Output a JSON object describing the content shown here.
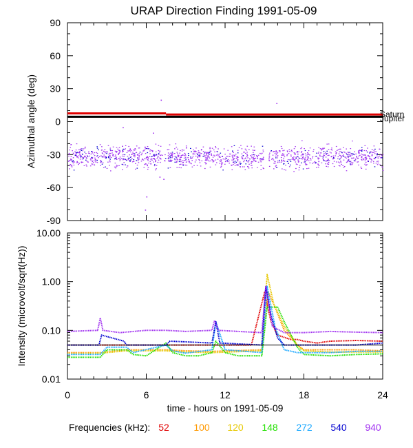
{
  "title": "URAP Direction Finding  1991-05-09",
  "xlabel": "time - hours on 1991-05-09",
  "legend_prefix": "Frequencies (kHz):",
  "colors": {
    "52": "#e00000",
    "100": "#ff9900",
    "120": "#e6c800",
    "148": "#22e000",
    "272": "#1aa8ff",
    "540": "#0000d0",
    "940": "#a030f0",
    "ref": "#000000"
  },
  "chart_data": [
    {
      "type": "scatter",
      "name": "azimuth-panel",
      "ylabel": "Azimuthal angle (deg)",
      "xlim": [
        0,
        24
      ],
      "ylim": [
        -90,
        90
      ],
      "x_ticks": [
        0,
        6,
        12,
        18,
        24
      ],
      "y_ticks": [
        "90",
        "60",
        "30",
        "0",
        "-30",
        "-60",
        "-90"
      ],
      "reference_lines": [
        {
          "label": "Saturn",
          "color": "red",
          "segments": [
            [
              0,
              7.5,
              7.5
            ],
            [
              7.5,
              24,
              6.5
            ]
          ]
        },
        {
          "label": "Jupiter",
          "color": "black",
          "segments": [
            [
              0,
              24,
              4.5
            ]
          ]
        }
      ],
      "scatter_band": {
        "center": -32,
        "spread": 9,
        "x": [
          0,
          24
        ]
      },
      "outliers": [
        [
          6,
          -68
        ],
        [
          5.9,
          -80
        ],
        [
          7,
          -50
        ],
        [
          7.3,
          -52
        ],
        [
          7.1,
          20
        ],
        [
          4.2,
          -5
        ],
        [
          15.9,
          17
        ],
        [
          6.5,
          -10
        ]
      ]
    },
    {
      "type": "line",
      "name": "intensity-panel",
      "ylabel": "Intensity (microvolt/sqrt(Hz))",
      "xlim": [
        0,
        24
      ],
      "ylim": [
        0.01,
        10
      ],
      "yscale": "log",
      "x_ticks": [
        "0",
        "6",
        "12",
        "18",
        "24"
      ],
      "y_ticks": [
        "10.00",
        "1.00",
        "0.10",
        "0.01"
      ],
      "series": [
        {
          "name": "52",
          "x": [
            0,
            14,
            15,
            15.5,
            16,
            17,
            17.5,
            18,
            19,
            20,
            22,
            24
          ],
          "values": [
            0.05,
            0.05,
            0.6,
            0.15,
            0.08,
            0.065,
            0.065,
            0.06,
            0.055,
            0.06,
            0.062,
            0.06
          ]
        },
        {
          "name": "100",
          "x": [
            0,
            2.5,
            4.5,
            7.5,
            9,
            11,
            14.8,
            15.3,
            15.8,
            16.5,
            17.5,
            18,
            20,
            22,
            24
          ],
          "values": [
            0.035,
            0.035,
            0.04,
            0.04,
            0.038,
            0.037,
            0.04,
            0.6,
            0.3,
            0.1,
            0.05,
            0.04,
            0.04,
            0.04,
            0.038
          ]
        },
        {
          "name": "120",
          "x": [
            0,
            2.5,
            4.5,
            7.5,
            9,
            11,
            14.8,
            15.2,
            15.7,
            16.5,
            17.5,
            18,
            20,
            22,
            24
          ],
          "values": [
            0.033,
            0.034,
            0.038,
            0.038,
            0.036,
            0.035,
            0.038,
            1.4,
            0.35,
            0.12,
            0.05,
            0.038,
            0.036,
            0.036,
            0.036
          ]
        },
        {
          "name": "148",
          "x": [
            0,
            2.5,
            3,
            4.5,
            5,
            6,
            7.5,
            8,
            9,
            10,
            11,
            11.3,
            12,
            13,
            14.8,
            15.2,
            16,
            16.5,
            17.5,
            18,
            20,
            22,
            24
          ],
          "values": [
            0.028,
            0.028,
            0.04,
            0.04,
            0.032,
            0.03,
            0.055,
            0.035,
            0.03,
            0.03,
            0.035,
            0.06,
            0.035,
            0.03,
            0.03,
            0.3,
            0.3,
            0.15,
            0.045,
            0.032,
            0.03,
            0.032,
            0.033
          ]
        },
        {
          "name": "272",
          "x": [
            0,
            2.5,
            3,
            4.5,
            5,
            7.5,
            8,
            9,
            11,
            11.3,
            12,
            14.8,
            15.2,
            15.8,
            16.5,
            17.5,
            18,
            20,
            22,
            24
          ],
          "values": [
            0.032,
            0.032,
            0.045,
            0.045,
            0.035,
            0.05,
            0.038,
            0.034,
            0.04,
            0.15,
            0.04,
            0.035,
            0.8,
            0.12,
            0.04,
            0.035,
            0.035,
            0.035,
            0.037,
            0.037
          ]
        },
        {
          "name": "540",
          "x": [
            0,
            2.4,
            2.6,
            4.3,
            4.5,
            7.5,
            7.8,
            11,
            11.3,
            11.6,
            14.8,
            15.1,
            15.5,
            16,
            16.5,
            18,
            20,
            22,
            24
          ],
          "values": [
            0.05,
            0.05,
            0.08,
            0.06,
            0.05,
            0.05,
            0.06,
            0.055,
            0.15,
            0.055,
            0.05,
            0.8,
            0.2,
            0.07,
            0.05,
            0.05,
            0.05,
            0.05,
            0.055
          ]
        },
        {
          "name": "940",
          "x": [
            0,
            2.3,
            2.5,
            2.7,
            4,
            6,
            7.5,
            9,
            11,
            11.2,
            11.5,
            13,
            14.8,
            15.1,
            15.6,
            16.5,
            18,
            20,
            22,
            24
          ],
          "values": [
            0.095,
            0.1,
            0.18,
            0.1,
            0.09,
            0.1,
            0.1,
            0.095,
            0.1,
            0.16,
            0.1,
            0.095,
            0.09,
            0.8,
            0.12,
            0.09,
            0.09,
            0.095,
            0.092,
            0.09
          ]
        }
      ],
      "reference_lines": [
        {
          "color": "black",
          "value": 0.05
        }
      ]
    }
  ]
}
